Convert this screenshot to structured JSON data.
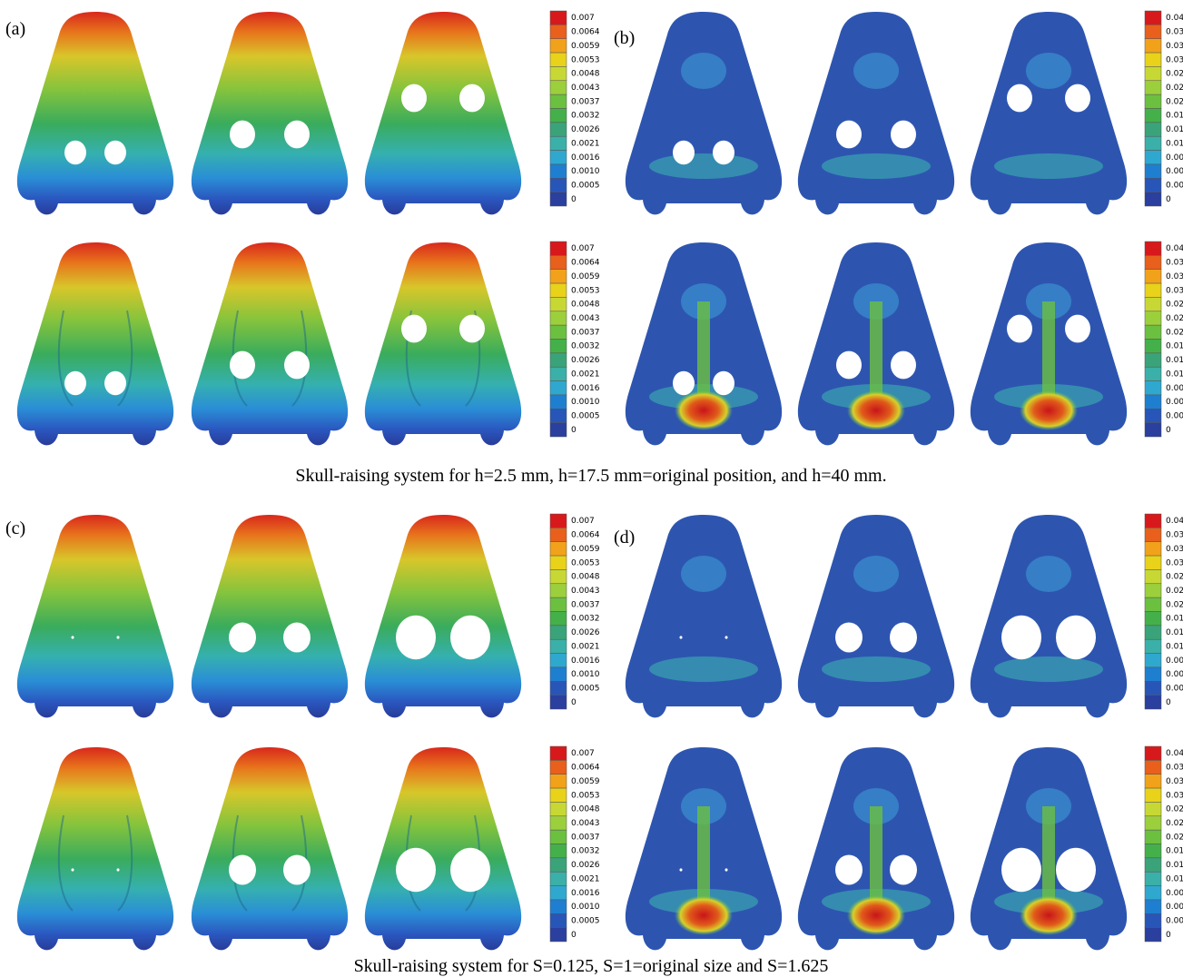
{
  "panels": [
    {
      "label": "(a)"
    },
    {
      "label": "(b)"
    },
    {
      "label": "(c)"
    },
    {
      "label": "(d)"
    }
  ],
  "legend_displacement": [
    "0.007",
    "0.0064",
    "0.0059",
    "0.0053",
    "0.0048",
    "0.0043",
    "0.0037",
    "0.0032",
    "0.0026",
    "0.0021",
    "0.0016",
    "0.0010",
    "0.0005",
    "0"
  ],
  "legend_strain": [
    "0.04",
    "0.03",
    "0.03",
    "0.03",
    "0.02",
    "0.02",
    "0.02",
    "0.01",
    "0.01",
    "0.01",
    "0.00",
    "0.00",
    "0.00",
    "0"
  ],
  "captions": [
    "Skull-raising system for h=2.5 mm, h=17.5 mm=original position, and h=40 mm.",
    "Skull-raising system for S=0.125, S=1=original size and S=1.625"
  ]
}
